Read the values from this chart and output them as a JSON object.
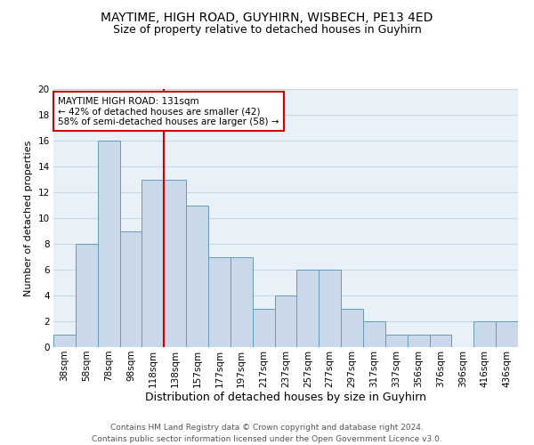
{
  "title1": "MAYTIME, HIGH ROAD, GUYHIRN, WISBECH, PE13 4ED",
  "title2": "Size of property relative to detached houses in Guyhirn",
  "xlabel": "Distribution of detached houses by size in Guyhirn",
  "ylabel": "Number of detached properties",
  "categories": [
    "38sqm",
    "58sqm",
    "78sqm",
    "98sqm",
    "118sqm",
    "138sqm",
    "157sqm",
    "177sqm",
    "197sqm",
    "217sqm",
    "237sqm",
    "257sqm",
    "277sqm",
    "297sqm",
    "317sqm",
    "337sqm",
    "356sqm",
    "376sqm",
    "396sqm",
    "416sqm",
    "436sqm"
  ],
  "values": [
    1,
    8,
    16,
    9,
    13,
    13,
    11,
    7,
    7,
    3,
    4,
    6,
    6,
    3,
    2,
    1,
    1,
    1,
    0,
    2,
    2
  ],
  "bar_color": "#c9d9ea",
  "bar_edge_color": "#6699bb",
  "ref_line_x": 4.5,
  "ref_line_color": "#cc0000",
  "annotation_text": "MAYTIME HIGH ROAD: 131sqm\n← 42% of detached houses are smaller (42)\n58% of semi-detached houses are larger (58) →",
  "annotation_box_color": "#ffffff",
  "annotation_box_edge": "#cc0000",
  "ylim": [
    0,
    20
  ],
  "yticks": [
    0,
    2,
    4,
    6,
    8,
    10,
    12,
    14,
    16,
    18,
    20
  ],
  "grid_color": "#c8d8e8",
  "background_color": "#e8f0f8",
  "footer": "Contains HM Land Registry data © Crown copyright and database right 2024.\nContains public sector information licensed under the Open Government Licence v3.0.",
  "title1_fontsize": 10,
  "title2_fontsize": 9,
  "xlabel_fontsize": 9,
  "ylabel_fontsize": 8,
  "tick_fontsize": 7.5,
  "footer_fontsize": 6.5
}
